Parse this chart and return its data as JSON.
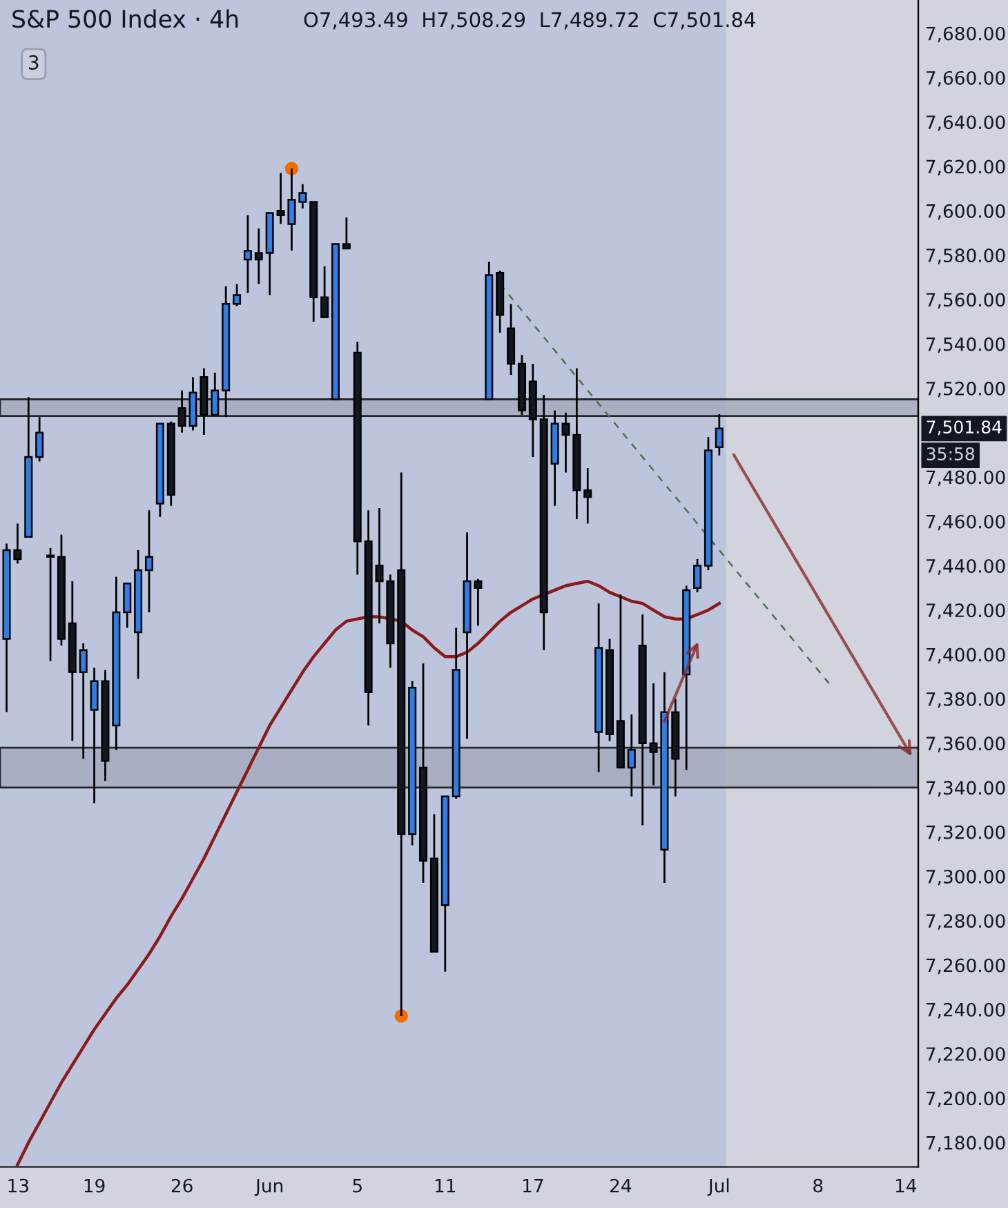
{
  "chart_data": {
    "type": "candlestick",
    "title": "S&P 500 Index · 4h",
    "subtitle": "O7,493.49  H7,508.29  L7,489.72  C7,501.84",
    "categories": [
      "13",
      null,
      null,
      null,
      null,
      null,
      null,
      null,
      "19",
      null,
      null,
      null,
      null,
      null,
      null,
      null,
      "26",
      null,
      null,
      null,
      null,
      null,
      null,
      null,
      "Jun",
      null,
      null,
      null,
      null,
      null,
      null,
      null,
      "5",
      null,
      null,
      null,
      null,
      null,
      null,
      null,
      "11",
      null,
      null,
      null,
      null,
      null,
      null,
      null,
      "17",
      null,
      null,
      null,
      null,
      null,
      null,
      null,
      "24",
      null,
      null,
      null,
      null,
      null,
      null,
      null,
      null,
      "Jul",
      null,
      null,
      null,
      null,
      null,
      null,
      null,
      null,
      "8",
      null,
      null,
      null,
      null,
      null,
      null,
      null,
      "14",
      null
    ],
    "ohlc": [
      [
        7407,
        7450,
        7374,
        7447
      ],
      [
        7447,
        7459,
        7441,
        7443
      ],
      [
        7453,
        7516,
        7453,
        7489
      ],
      [
        7489,
        7507,
        7487,
        7500
      ],
      [
        7444,
        7448,
        7397,
        7444
      ],
      [
        7444,
        7454,
        7404,
        7407
      ],
      [
        7414,
        7433,
        7361,
        7392
      ],
      [
        7392,
        7405,
        7353,
        7402
      ],
      [
        7375,
        7394,
        7333,
        7388
      ],
      [
        7388,
        7393,
        7343,
        7352
      ],
      [
        7368,
        7435,
        7357,
        7419
      ],
      [
        7419,
        7432,
        7412,
        7432
      ],
      [
        7410,
        7447,
        7389,
        7438
      ],
      [
        7438,
        7465,
        7419,
        7444
      ],
      [
        7468,
        7504,
        7462,
        7504
      ],
      [
        7504,
        7505,
        7467,
        7472
      ],
      [
        7511,
        7519,
        7500,
        7503
      ],
      [
        7503,
        7525,
        7501,
        7518
      ],
      [
        7525,
        7529,
        7499,
        7508
      ],
      [
        7508,
        7527,
        7508,
        7519
      ],
      [
        7519,
        7566,
        7507,
        7558
      ],
      [
        7558,
        7567,
        7557,
        7562
      ],
      [
        7578,
        7598,
        7563,
        7582
      ],
      [
        7581,
        7592,
        7567,
        7578
      ],
      [
        7581,
        7599,
        7562,
        7599
      ],
      [
        7600,
        7617,
        7594,
        7598
      ],
      [
        7594,
        7619,
        7582,
        7605
      ],
      [
        7604,
        7612,
        7601,
        7608
      ],
      [
        7604,
        7604,
        7550,
        7561
      ],
      [
        7561,
        7575,
        7552,
        7552
      ],
      [
        7515,
        7585,
        7515,
        7585
      ],
      [
        7585,
        7597,
        7583,
        7583
      ],
      [
        7536,
        7541,
        7436,
        7451
      ],
      [
        7451,
        7465,
        7368,
        7383
      ],
      [
        7440,
        7466,
        7414,
        7433
      ],
      [
        7433,
        7436,
        7394,
        7405
      ],
      [
        7438,
        7482,
        7237,
        7319
      ],
      [
        7319,
        7388,
        7314,
        7385
      ],
      [
        7349,
        7396,
        7297,
        7307
      ],
      [
        7308,
        7328,
        7266,
        7266
      ],
      [
        7287,
        7336,
        7257,
        7336
      ],
      [
        7336,
        7412,
        7335,
        7393
      ],
      [
        7410,
        7455,
        7362,
        7433
      ],
      [
        7433,
        7434,
        7413,
        7430
      ],
      [
        7515,
        7577,
        7515,
        7571
      ],
      [
        7572,
        7573,
        7545,
        7553
      ],
      [
        7547,
        7558,
        7526,
        7531
      ],
      [
        7531,
        7535,
        7508,
        7510
      ],
      [
        7523,
        7531,
        7489,
        7506
      ],
      [
        7506,
        7517,
        7402,
        7419
      ],
      [
        7486,
        7510,
        7467,
        7504
      ],
      [
        7504,
        7509,
        7482,
        7499
      ],
      [
        7499,
        7529,
        7461,
        7474
      ],
      [
        7474,
        7484,
        7459,
        7471
      ],
      [
        7365,
        7423,
        7347,
        7403
      ],
      [
        7402,
        7407,
        7361,
        7364
      ],
      [
        7370,
        7427,
        7349,
        7349
      ],
      [
        7349,
        7373,
        7336,
        7357
      ],
      [
        7404,
        7418,
        7323,
        7360
      ],
      [
        7360,
        7387,
        7341,
        7356
      ],
      [
        7312,
        7392,
        7297,
        7374
      ],
      [
        7374,
        7380,
        7336,
        7353
      ],
      [
        7391,
        7431,
        7348,
        7429
      ],
      [
        7430,
        7443,
        7428,
        7440
      ],
      [
        7440,
        7498,
        7438,
        7492
      ],
      [
        7493.49,
        7508.29,
        7489.72,
        7501.84
      ],
      null,
      null,
      null,
      null,
      null,
      null,
      null,
      null,
      null,
      null,
      null,
      null,
      null,
      null,
      null,
      null,
      null,
      null
    ],
    "colors": [
      "#2f7ee8",
      "#131722",
      "#2f7ee8",
      "#2f7ee8",
      "#131722",
      "#131722",
      "#131722",
      "#2f7ee8",
      "#2f7ee8",
      "#131722",
      "#2f7ee8",
      "#2f7ee8",
      "#2f7ee8",
      "#2f7ee8",
      "#2f7ee8",
      "#131722",
      "#131722",
      "#2f7ee8",
      "#131722",
      "#2f7ee8",
      "#2f7ee8",
      "#2f7ee8",
      "#2f7ee8",
      "#131722",
      "#2f7ee8",
      "#131722",
      "#2f7ee8",
      "#2f7ee8",
      "#131722",
      "#131722",
      "#2f7ee8",
      "#131722",
      "#131722",
      "#131722",
      "#131722",
      "#131722",
      "#131722",
      "#2f7ee8",
      "#131722",
      "#131722",
      "#2f7ee8",
      "#2f7ee8",
      "#2f7ee8",
      "#131722",
      "#2f7ee8",
      "#131722",
      "#131722",
      "#131722",
      "#131722",
      "#131722",
      "#2f7ee8",
      "#131722",
      "#131722",
      "#131722",
      "#2f7ee8",
      "#131722",
      "#131722",
      "#2f7ee8",
      "#131722",
      "#131722",
      "#2f7ee8",
      "#131722",
      "#2f7ee8",
      "#2f7ee8",
      "#2f7ee8",
      "#2f7ee8",
      null,
      null,
      null,
      null,
      null,
      null,
      null,
      null,
      null,
      null,
      null,
      null,
      null,
      null,
      null,
      null,
      null,
      null
    ],
    "series": [
      {
        "type": "line",
        "color": "#8b1a1a",
        "values": [
          null,
          7170,
          7180,
          7189,
          7198,
          7207,
          7215,
          7223,
          7231,
          7238,
          7245,
          7251,
          7258,
          7265,
          7273,
          7282,
          7290,
          7299,
          7308,
          7318,
          7328,
          7338,
          7348,
          7358,
          7368,
          7376,
          7384,
          7392,
          7399,
          7405,
          7411,
          7415,
          7416,
          7417,
          7417,
          7416,
          7415,
          7411,
          7408,
          7403,
          7399,
          7399,
          7401,
          7405,
          7410,
          7415,
          7419,
          7422,
          7425,
          7427,
          7429,
          7431,
          7432,
          7433,
          7431,
          7428,
          7426,
          7424,
          7423,
          7420,
          7417,
          7416,
          7416,
          7418,
          7420,
          7423,
          null,
          null,
          null,
          null,
          null,
          null,
          null,
          null,
          null,
          null,
          null,
          null,
          null,
          null,
          null,
          null,
          null,
          null
        ]
      },
      {
        "type": "line",
        "color": "#4f6f4f",
        "line_style": "dashed",
        "values": [
          null,
          null,
          null,
          null,
          null,
          null,
          null,
          null,
          null,
          null,
          null,
          null,
          null,
          null,
          null,
          null,
          null,
          null,
          null,
          null,
          null,
          null,
          null,
          null,
          null,
          null,
          null,
          null,
          null,
          null,
          null,
          null,
          null,
          null,
          null,
          null,
          null,
          null,
          null,
          null,
          null,
          null,
          null,
          null,
          null,
          7567,
          null,
          null,
          null,
          null,
          null,
          null,
          null,
          null,
          null,
          null,
          null,
          null,
          null,
          null,
          null,
          null,
          null,
          null,
          null,
          null,
          null,
          null,
          null,
          null,
          null,
          null,
          null,
          null,
          null,
          7387,
          null,
          null,
          null,
          null,
          null,
          null,
          null,
          null
        ]
      },
      {
        "type": "scatter",
        "color": "#ef6c00",
        "marker": "circle",
        "values": [
          null,
          null,
          null,
          null,
          null,
          null,
          null,
          null,
          null,
          null,
          null,
          null,
          null,
          null,
          null,
          null,
          null,
          null,
          null,
          null,
          null,
          null,
          null,
          null,
          null,
          null,
          7619,
          null,
          null,
          null,
          null,
          null,
          null,
          null,
          null,
          null,
          7237,
          null,
          null,
          null,
          null,
          null,
          null,
          null,
          null,
          null,
          null,
          null,
          null,
          null,
          null,
          null,
          null,
          null,
          null,
          null,
          null,
          null,
          null,
          null,
          null,
          null,
          null,
          null,
          null,
          null,
          null,
          null,
          null,
          null,
          null,
          null,
          null,
          null,
          null,
          null,
          null,
          null,
          null,
          null,
          null,
          null,
          null,
          null
        ]
      }
    ],
    "ylim": [
      7169,
      7695
    ],
    "yticks": [
      {
        "value": 7180,
        "label": "7,180.00"
      },
      {
        "value": 7200,
        "label": "7,200.00"
      },
      {
        "value": 7220,
        "label": "7,220.00"
      },
      {
        "value": 7240,
        "label": "7,240.00"
      },
      {
        "value": 7260,
        "label": "7,260.00"
      },
      {
        "value": 7280,
        "label": "7,280.00"
      },
      {
        "value": 7300,
        "label": "7,300.00"
      },
      {
        "value": 7320,
        "label": "7,320.00"
      },
      {
        "value": 7340,
        "label": "7,340.00"
      },
      {
        "value": 7360,
        "label": "7,360.00"
      },
      {
        "value": 7380,
        "label": "7,380.00"
      },
      {
        "value": 7400,
        "label": "7,400.00"
      },
      {
        "value": 7420,
        "label": "7,420.00"
      },
      {
        "value": 7440,
        "label": "7,440.00"
      },
      {
        "value": 7460,
        "label": "7,460.00"
      },
      {
        "value": 7480,
        "label": "7,480.00"
      },
      {
        "value": 7520,
        "label": "7,520.00"
      },
      {
        "value": 7540,
        "label": "7,540.00"
      },
      {
        "value": 7560,
        "label": "7,560.00"
      },
      {
        "value": 7580,
        "label": "7,580.00"
      },
      {
        "value": 7600,
        "label": "7,600.00"
      },
      {
        "value": 7620,
        "label": "7,620.00"
      },
      {
        "value": 7640,
        "label": "7,640.00"
      },
      {
        "value": 7660,
        "label": "7,660.00"
      },
      {
        "value": 7680,
        "label": "7,680.00"
      }
    ],
    "bands": [
      {
        "axis": "y",
        "from": 7507.5,
        "to": 7515,
        "color": "#a5aabd"
      },
      {
        "axis": "y",
        "from": 7340,
        "to": 7358,
        "color": "#a5aabd"
      }
    ],
    "annotations": [
      "3",
      "7,501.84",
      "35:58"
    ],
    "grid": false,
    "legend": false
  }
}
